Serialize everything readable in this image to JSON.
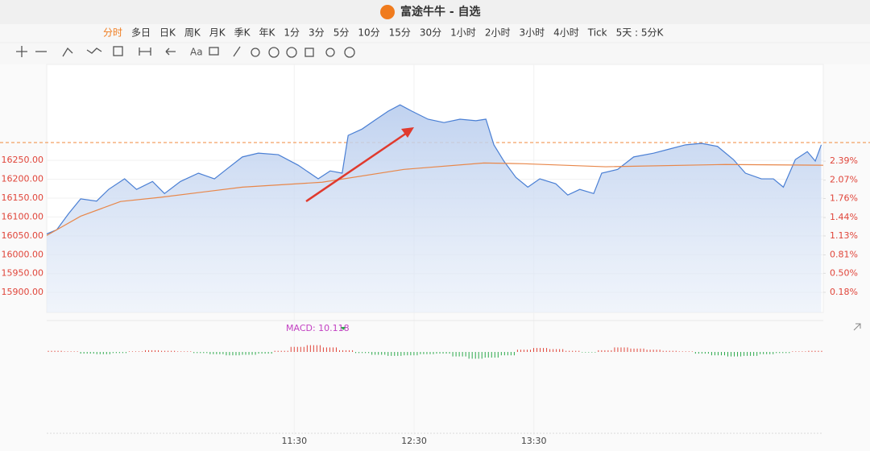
{
  "window": {
    "title": "富途牛牛 - 自选"
  },
  "toolbar": {
    "periods": [
      "分时",
      "多日",
      "日K",
      "周K",
      "月K",
      "季K",
      "年K",
      "1分",
      "3分",
      "5分",
      "10分",
      "15分",
      "30分",
      "1小时",
      "2小时",
      "3小时",
      "4小时",
      "Tick",
      "5天 : 5分K"
    ],
    "active_color": "#f07b1d",
    "text_tool": "Aa"
  },
  "chart_data": {
    "type": "line",
    "series": [
      {
        "color": "#4a7fd4",
        "fill": true,
        "x": [
          566,
          571,
          577,
          583,
          591,
          597,
          605,
          611,
          619,
          625,
          633,
          642,
          650,
          656,
          664,
          672,
          682,
          692,
          702,
          708,
          714,
          717,
          724,
          730,
          737,
          743,
          749,
          757,
          765,
          773,
          781,
          786,
          790,
          795,
          801,
          807,
          813,
          821,
          827,
          833,
          840,
          844,
          852,
          860,
          870,
          878,
          886,
          894,
          902,
          910,
          916,
          924,
          930,
          935,
          941,
          947,
          951,
          954
        ],
        "values": [
          16055,
          16066,
          16109,
          16148,
          16142,
          16173,
          16201,
          16173,
          16194,
          16162,
          16194,
          16216,
          16201,
          16226,
          16259,
          16269,
          16265,
          16237,
          16201,
          16222,
          16216,
          16316,
          16333,
          16355,
          16380,
          16397,
          16380,
          16359,
          16350,
          16359,
          16355,
          16359,
          16291,
          16248,
          16205,
          16179,
          16201,
          16188,
          16158,
          16173,
          16162,
          16216,
          16226,
          16259,
          16269,
          16280,
          16291,
          16295,
          16287,
          16252,
          16216,
          16201,
          16201,
          16179,
          16252,
          16273,
          16248,
          16291
        ]
      },
      {
        "color": "#e8874a",
        "x": [
          566,
          583,
          603,
          623,
          664,
          704,
          745,
          785,
          805,
          846,
          906,
          955
        ],
        "values": [
          16051,
          16102,
          16141,
          16152,
          16179,
          16192,
          16226,
          16243,
          16241,
          16233,
          16239,
          16237
        ]
      }
    ],
    "ref_line": {
      "value": 16297,
      "color": "#f08a3c"
    },
    "xlim": [
      566,
      955
    ],
    "xticks": [
      {
        "value": 690,
        "label": "11:30"
      },
      {
        "value": 750,
        "label": "12:30"
      },
      {
        "value": 810,
        "label": "13:30"
      }
    ],
    "ylim": [
      15847,
      16504
    ],
    "yticks": [
      {
        "value": 16250,
        "label": "16250.00"
      },
      {
        "value": 16200,
        "label": "16200.00"
      },
      {
        "value": 16150,
        "label": "16150.00"
      },
      {
        "value": 16100,
        "label": "16100.00"
      },
      {
        "value": 16050,
        "label": "16050.00"
      },
      {
        "value": 16000,
        "label": "16000.00"
      },
      {
        "value": 15950,
        "label": "15950.00"
      },
      {
        "value": 15900,
        "label": "15900.00"
      }
    ],
    "y2lim": [
      -0.16,
      4.02
    ],
    "y2ticks": [
      {
        "value": 2.39,
        "label": "2.39%"
      },
      {
        "value": 2.07,
        "label": "2.07%"
      },
      {
        "value": 1.76,
        "label": "1.76%"
      },
      {
        "value": 1.44,
        "label": "1.44%"
      },
      {
        "value": 1.13,
        "label": "1.13%"
      },
      {
        "value": 0.81,
        "label": "0.81%"
      },
      {
        "value": 0.5,
        "label": "0.50%"
      },
      {
        "value": 0.18,
        "label": "0.18%"
      }
    ],
    "tick_color": "#e0453a",
    "macd": {
      "label": "MACD: 10.118",
      "ylim": [
        -20,
        20
      ],
      "histogram": [
        2,
        1,
        -3,
        -4,
        -2,
        1,
        3,
        2,
        1,
        -2,
        -4,
        -6,
        -5,
        -3,
        2,
        9,
        12,
        8,
        3,
        -2,
        -5,
        -7,
        -6,
        -4,
        -3,
        -8,
        -12,
        -10,
        -6,
        4,
        7,
        5,
        2,
        -1,
        3,
        8,
        6,
        4,
        2,
        1,
        -3,
        -6,
        -8,
        -7,
        -4,
        -2,
        1,
        2
      ]
    }
  }
}
